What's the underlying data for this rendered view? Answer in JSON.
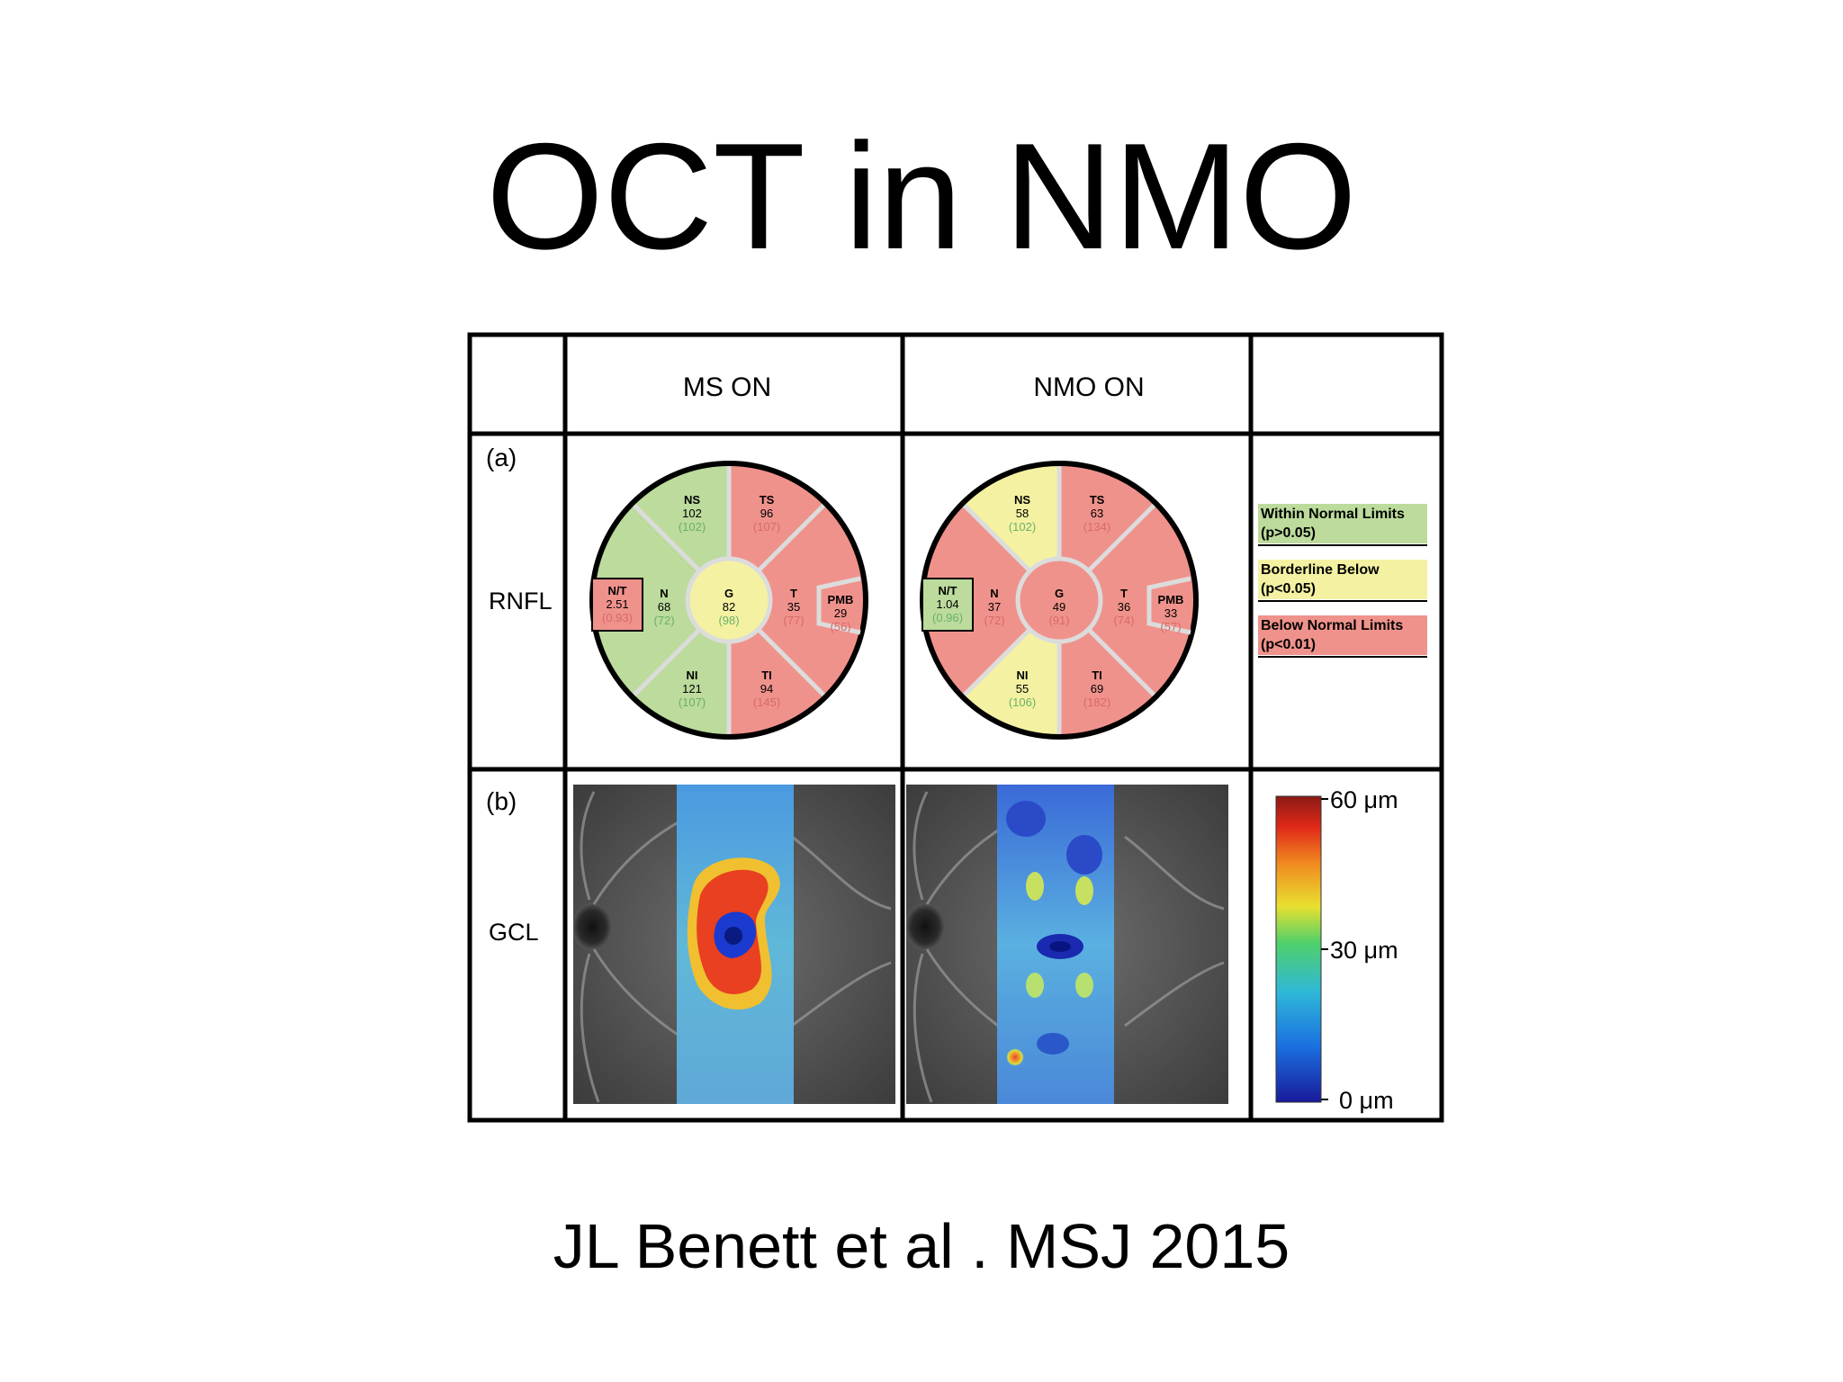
{
  "slide": {
    "title": "OCT in NMO",
    "citation": "JL Benett et al . MSJ 2015"
  },
  "figure": {
    "headers": {
      "col_ms": "MS ON",
      "col_nmo": "NMO ON"
    },
    "rows": {
      "a": {
        "tag": "(a)",
        "label": "RNFL"
      },
      "b": {
        "tag": "(b)",
        "label": "GCL"
      }
    },
    "colors": {
      "normal": "#bcdb9c",
      "borderline": "#f4f2a2",
      "below": "#f0928c",
      "sep": "#dcdcdc",
      "ref_text": "#6ab06a",
      "ref_text_on_red": "#d86a66"
    },
    "ms_chart": {
      "NS": {
        "label": "NS",
        "value": "102",
        "ref": "(102)",
        "status": "normal"
      },
      "TS": {
        "label": "TS",
        "value": "96",
        "ref": "(107)",
        "status": "below"
      },
      "N": {
        "label": "N",
        "value": "68",
        "ref": "(72)",
        "status": "normal"
      },
      "T": {
        "label": "T",
        "value": "35",
        "ref": "(77)",
        "status": "below"
      },
      "NI": {
        "label": "NI",
        "value": "121",
        "ref": "(107)",
        "status": "normal"
      },
      "TI": {
        "label": "TI",
        "value": "94",
        "ref": "(145)",
        "status": "below"
      },
      "G": {
        "label": "G",
        "value": "82",
        "ref": "(98)",
        "status": "borderline"
      },
      "PMB": {
        "label": "PMB",
        "value": "29",
        "ref": "(56)",
        "status": "below"
      },
      "NT": {
        "label": "N/T",
        "value": "2.51",
        "ref": "(0.93)",
        "status": "below"
      }
    },
    "nmo_chart": {
      "NS": {
        "label": "NS",
        "value": "58",
        "ref": "(102)",
        "status": "borderline"
      },
      "TS": {
        "label": "TS",
        "value": "63",
        "ref": "(134)",
        "status": "below"
      },
      "N": {
        "label": "N",
        "value": "37",
        "ref": "(72)",
        "status": "below"
      },
      "T": {
        "label": "T",
        "value": "36",
        "ref": "(74)",
        "status": "below"
      },
      "NI": {
        "label": "NI",
        "value": "55",
        "ref": "(106)",
        "status": "borderline"
      },
      "TI": {
        "label": "TI",
        "value": "69",
        "ref": "(182)",
        "status": "below"
      },
      "G": {
        "label": "G",
        "value": "49",
        "ref": "(91)",
        "status": "below"
      },
      "PMB": {
        "label": "PMB",
        "value": "33",
        "ref": "(57)",
        "status": "below"
      },
      "NT": {
        "label": "N/T",
        "value": "1.04",
        "ref": "(0.96)",
        "status": "normal"
      }
    },
    "legend": [
      {
        "line1": "Within Normal Limits",
        "line2": "(p>0.05)",
        "status": "normal"
      },
      {
        "line1": "Borderline Below",
        "line2": "(p<0.05)",
        "status": "borderline"
      },
      {
        "line1": "Below Normal Limits",
        "line2": "(p<0.01)",
        "status": "below"
      }
    ],
    "scale": {
      "top": "60 μm",
      "mid": "30 μm",
      "bottom": "0 μm"
    }
  }
}
